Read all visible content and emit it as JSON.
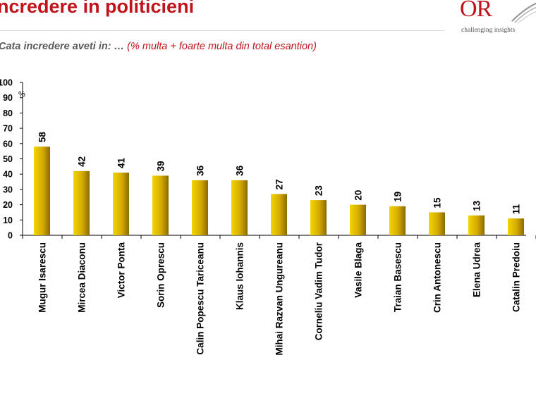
{
  "header": {
    "title": "ncredere in politicieni",
    "subtitle_question": "Cata incredere aveti in: …",
    "subtitle_note": "(% multa + foarte multa din  total esantion)"
  },
  "logo": {
    "mark": "OR",
    "tagline": "challenging insights",
    "icon": "swoosh-icon"
  },
  "colors": {
    "title": "#c0141c",
    "bar_light": "#f2d500",
    "bar_dark": "#8a6a00"
  },
  "chart_data": {
    "type": "bar",
    "categories": [
      "Mugur Isarescu",
      "Mircea Diaconu",
      "Victor Ponta",
      "Sorin Oprescu",
      "Calin Popescu Tariceanu",
      "Klaus Iohannis",
      "Mihai Razvan Ungureanu",
      "Corneliu Vadim Tudor",
      "Vasile Blaga",
      "Traian Basescu",
      "Crin Antonescu",
      "Elena Udrea",
      "Catalin Predoiu"
    ],
    "values": [
      58,
      42,
      41,
      39,
      36,
      36,
      27,
      23,
      20,
      19,
      15,
      13,
      11
    ],
    "title": "",
    "xlabel": "",
    "ylabel": "%",
    "ylim": [
      0,
      100
    ],
    "yticks": [
      "0",
      "10",
      "20",
      "30",
      "40",
      "50",
      "60",
      "70",
      "80",
      "90",
      "100"
    ],
    "grid": false,
    "data_labels": true
  }
}
